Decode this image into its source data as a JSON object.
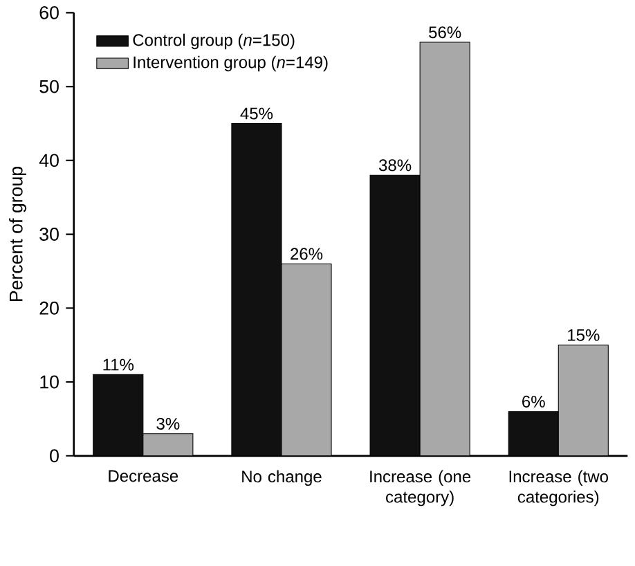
{
  "chart_data": {
    "type": "bar",
    "ylabel": "Percent of group",
    "categories": [
      "Decrease",
      "No change",
      "Increase (one category)",
      "Increase (two categories)"
    ],
    "series": [
      {
        "name": "Control group (*n*=150)",
        "color": "#111111",
        "values": [
          11,
          45,
          38,
          6
        ],
        "value_labels": [
          "11%",
          "45%",
          "38%",
          "6%"
        ]
      },
      {
        "name": "Intervention group (*n*=149)",
        "color": "#a8a8a8",
        "values": [
          3,
          26,
          56,
          15
        ],
        "value_labels": [
          "3%",
          "26%",
          "56%",
          "15%"
        ]
      }
    ],
    "ylim": [
      0,
      60
    ],
    "yticks": [
      0,
      10,
      20,
      30,
      40,
      50,
      60
    ],
    "grid": false,
    "legend": "top left"
  }
}
